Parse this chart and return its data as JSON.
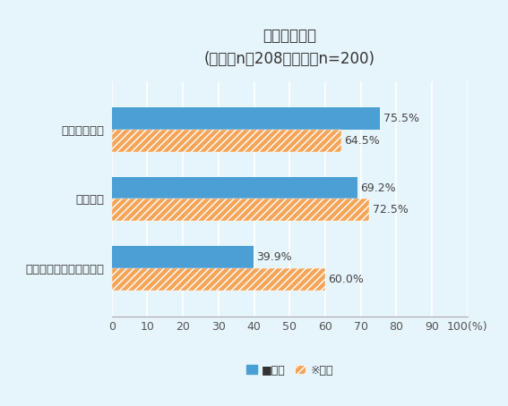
{
  "title": "ターゲット層",
  "subtitle": "(現在：n＝208、将来：n=200)",
  "categories": [
    "進出日系企業",
    "地場企業",
    "外資系企業（日系除く）"
  ],
  "current_values": [
    75.5,
    69.2,
    39.9
  ],
  "future_values": [
    64.5,
    72.5,
    60.0
  ],
  "current_label": "現在",
  "future_label": "将来",
  "current_color": "#4B9FD4",
  "future_color": "#F5A55A",
  "background_color": "#E6F4FB",
  "bar_height": 0.32,
  "xlim": [
    0,
    100
  ],
  "xticks": [
    0,
    10,
    20,
    30,
    40,
    50,
    60,
    70,
    80,
    90,
    100
  ],
  "xlabel": "(%)",
  "title_fontsize": 12,
  "subtitle_fontsize": 11,
  "label_fontsize": 9.5,
  "tick_fontsize": 9,
  "value_fontsize": 9
}
